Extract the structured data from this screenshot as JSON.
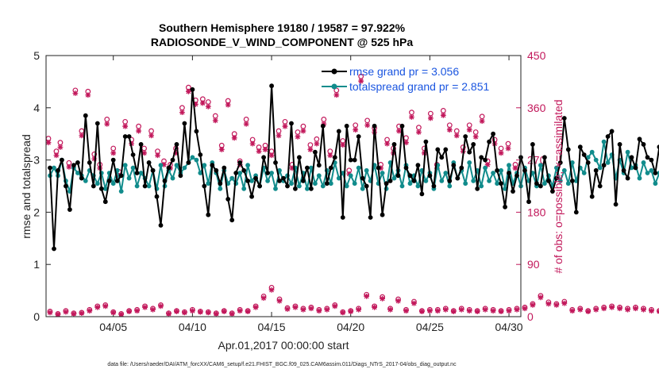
{
  "chart_data": {
    "type": "line",
    "title": "Southern Hemisphere 19180 / 19587 = 97.922%",
    "subtitle": "RADIOSONDE_V_WIND_COMPONENT @ 525 hPa",
    "xlabel": "Apr.01,2017 00:00:00 start",
    "ylabel_left": "rmse and totalspread",
    "ylabel_right": "# of obs: o=possible; ×=assimilated",
    "footnote": "data file: /Users/raeder/DAI/ATM_forcXX/CAM6_setup/f.e21.FHIST_BGC.f09_025.CAM6assim.011/Diags_NTrS_2017-04/obs_diag_output.nc",
    "xlim": [
      0.75,
      30.75
    ],
    "ylim_left": [
      0,
      5
    ],
    "ylim_right": [
      0,
      450
    ],
    "x_ticks": [
      {
        "day": 5,
        "label": "04/05"
      },
      {
        "day": 10,
        "label": "04/10"
      },
      {
        "day": 15,
        "label": "04/15"
      },
      {
        "day": 20,
        "label": "04/20"
      },
      {
        "day": 25,
        "label": "04/25"
      },
      {
        "day": 30,
        "label": "04/30"
      }
    ],
    "y_ticks_left": [
      "0",
      "1",
      "2",
      "3",
      "4",
      "5"
    ],
    "y_ticks_right": [
      "0",
      "90",
      "180",
      "270",
      "360",
      "450"
    ],
    "step_days": 0.25,
    "colors": {
      "rmse": "#000000",
      "spread": "#118c8c",
      "obs": "#c2185b",
      "legend_text": "#1a55e0"
    },
    "series": [
      {
        "name": "rmse grand pr = 3.056",
        "key": "rmse",
        "values": [
          2.85,
          1.3,
          2.8,
          3.0,
          2.5,
          2.05,
          2.9,
          2.95,
          2.65,
          3.85,
          2.95,
          2.5,
          3.7,
          2.45,
          2.2,
          2.6,
          3.0,
          2.6,
          2.7,
          3.45,
          3.45,
          3.1,
          2.75,
          3.3,
          2.5,
          2.95,
          2.8,
          2.3,
          1.75,
          2.6,
          2.85,
          3.0,
          3.3,
          2.7,
          3.7,
          2.95,
          4.35,
          3.55,
          3.1,
          2.5,
          1.95,
          2.9,
          2.8,
          2.55,
          2.85,
          2.25,
          1.85,
          2.75,
          2.95,
          2.8,
          2.6,
          2.3,
          2.65,
          2.5,
          3.05,
          2.75,
          4.42,
          2.95,
          2.6,
          2.65,
          2.5,
          3.7,
          2.45,
          3.05,
          2.6,
          2.85,
          2.45,
          3.15,
          2.9,
          3.65,
          2.55,
          2.85,
          3.05,
          3.55,
          1.9,
          3.65,
          3.0,
          3.0,
          3.45,
          2.65,
          2.5,
          1.9,
          3.65,
          2.85,
          1.95,
          2.55,
          2.6,
          3.3,
          2.7,
          3.65,
          2.85,
          2.7,
          2.6,
          2.9,
          2.35,
          3.35,
          2.7,
          2.5,
          3.2,
          3.05,
          3.2,
          2.6,
          2.9,
          2.65,
          2.85,
          3.45,
          3.15,
          3.3,
          2.45,
          3.05,
          3.0,
          3.35,
          3.5,
          2.8,
          2.55,
          2.1,
          2.75,
          2.4,
          2.7,
          3.05,
          2.8,
          2.2,
          3.3,
          2.55,
          2.5,
          3.05,
          2.6,
          2.4,
          2.65,
          2.95,
          3.8,
          3.2,
          2.6,
          2.0,
          3.25,
          3.1,
          2.95,
          2.3,
          2.8,
          2.5,
          2.9,
          3.45,
          3.55,
          2.15,
          3.3,
          2.8,
          2.65,
          3.05,
          2.85,
          3.4,
          3.3,
          3.05,
          3.0,
          2.75,
          3.25,
          3.75,
          3.55,
          3.3,
          2.55,
          2.3,
          2.0,
          3.2,
          2.9,
          3.55,
          1.4,
          3.35,
          2.75
        ]
      },
      {
        "name": "totalspread grand pr = 2.851",
        "key": "spread",
        "values": [
          2.7,
          2.85,
          2.7,
          3.0,
          2.6,
          2.4,
          2.85,
          2.75,
          2.7,
          2.6,
          2.8,
          2.7,
          2.55,
          2.75,
          2.45,
          2.75,
          2.55,
          2.8,
          2.4,
          2.9,
          2.65,
          2.85,
          2.5,
          2.75,
          2.65,
          2.5,
          2.8,
          2.45,
          2.9,
          2.5,
          2.8,
          2.65,
          2.9,
          2.75,
          2.85,
          2.95,
          3.05,
          3.0,
          2.75,
          2.9,
          2.55,
          2.95,
          2.75,
          2.45,
          2.8,
          2.55,
          2.65,
          2.55,
          2.75,
          2.45,
          2.9,
          2.6,
          2.7,
          2.5,
          2.85,
          2.6,
          2.75,
          2.45,
          2.8,
          2.6,
          2.7,
          2.55,
          2.85,
          2.5,
          2.75,
          2.45,
          2.85,
          2.55,
          2.7,
          2.5,
          2.8,
          2.55,
          2.95,
          2.65,
          2.75,
          2.5,
          2.7,
          2.55,
          2.85,
          2.45,
          2.8,
          2.6,
          2.9,
          2.55,
          2.75,
          2.45,
          2.95,
          2.65,
          2.8,
          2.5,
          2.9,
          2.55,
          2.7,
          2.5,
          2.8,
          2.6,
          2.75,
          2.45,
          2.9,
          2.6,
          2.75,
          2.5,
          2.95,
          2.65,
          2.8,
          2.55,
          2.95,
          2.6,
          2.8,
          2.5,
          2.85,
          2.6,
          2.75,
          2.55,
          2.8,
          2.45,
          2.9,
          2.55,
          2.75,
          2.5,
          2.85,
          2.6,
          2.75,
          2.5,
          2.9,
          2.55,
          2.7,
          2.5,
          2.85,
          2.6,
          2.8,
          2.55,
          2.95,
          2.6,
          2.85,
          2.75,
          3.05,
          3.15,
          3.0,
          2.85,
          3.35,
          2.95,
          3.1,
          2.65,
          3.0,
          2.75,
          3.15,
          2.85,
          2.9,
          2.65,
          2.95,
          2.75,
          2.8,
          2.55,
          2.75,
          2.5,
          2.9,
          2.6,
          2.8,
          2.55,
          2.45,
          2.85,
          2.35,
          2.9,
          2.5
        ]
      },
      {
        "name": "obs possible",
        "key": "obs_possible",
        "values": [
          9,
          12,
          5,
          22,
          10,
          18,
          6,
          15,
          7,
          20,
          12,
          8,
          18,
          6,
          20,
          12,
          8,
          15,
          5,
          22,
          10,
          8,
          12,
          6,
          18,
          10,
          14,
          8,
          20,
          12,
          6,
          14,
          10,
          18,
          8,
          22,
          12,
          16,
          9,
          14,
          8,
          12,
          6,
          18,
          10,
          14,
          6,
          20,
          12,
          16,
          10,
          20,
          18,
          28,
          35,
          45,
          50,
          42,
          30,
          20,
          15,
          12,
          18,
          10,
          14,
          8,
          16,
          10,
          12,
          8,
          14,
          10,
          20,
          12,
          8,
          15,
          10,
          22,
          14,
          30,
          38,
          25,
          18,
          28,
          34,
          20,
          14,
          24,
          30,
          18,
          12,
          20,
          26,
          14,
          10,
          16,
          12,
          18,
          12,
          22,
          14,
          18,
          10,
          16,
          14,
          20,
          12,
          16,
          10,
          18,
          14,
          22,
          12,
          16,
          10,
          20,
          12,
          18,
          14,
          24,
          16,
          30,
          22,
          28,
          36,
          30,
          25,
          18,
          22,
          14,
          26,
          20,
          12,
          18,
          14,
          22,
          10,
          18,
          14,
          20,
          16,
          12,
          18,
          10,
          16,
          8,
          14,
          12,
          16,
          10,
          14,
          8,
          12,
          6,
          10,
          4,
          8,
          2,
          6,
          1
        ]
      },
      {
        "name": "obs assimilated",
        "key": "obs_assim",
        "values": [
          7,
          10,
          4,
          20,
          8,
          16,
          5,
          13,
          6,
          18,
          10,
          7,
          16,
          5,
          18,
          10,
          7,
          13,
          4,
          20,
          9,
          7,
          10,
          5,
          16,
          9,
          12,
          7,
          18,
          10,
          5,
          12,
          9,
          16,
          7,
          20,
          10,
          14,
          8,
          12,
          7,
          10,
          5,
          16,
          9,
          12,
          5,
          18,
          10,
          14,
          9,
          18,
          16,
          25,
          32,
          42,
          46,
          38,
          27,
          18,
          13,
          10,
          16,
          9,
          12,
          7,
          14,
          9,
          10,
          7,
          12,
          9,
          18,
          10,
          7,
          13,
          9,
          20,
          12,
          27,
          35,
          22,
          16,
          25,
          31,
          18,
          12,
          22,
          27,
          16,
          10,
          18,
          23,
          12,
          9,
          14,
          10,
          16,
          10,
          20,
          12,
          16,
          9,
          14,
          12,
          18,
          10,
          14,
          9,
          16,
          12,
          20,
          10,
          14,
          9,
          18,
          10,
          16,
          12,
          22,
          14,
          27,
          20,
          25,
          33,
          27,
          22,
          16,
          20,
          12,
          23,
          18,
          10,
          16,
          12,
          20,
          9,
          16,
          12,
          18,
          14,
          10,
          16,
          9,
          14,
          7,
          12,
          10,
          14,
          9,
          12,
          7,
          10,
          5,
          9,
          3,
          7,
          1,
          5,
          1
        ]
      }
    ],
    "upper_obs": {
      "days": [
        0.9,
        1.4,
        1.65,
        2.2,
        2.6,
        3.0,
        3.4,
        3.8,
        4.15,
        4.6,
        5.0,
        5.35,
        5.75,
        6.15,
        6.6,
        6.95,
        7.4,
        7.8,
        8.2,
        8.6,
        8.95,
        9.35,
        9.75,
        10.2,
        10.65,
        11.0,
        11.45,
        11.85,
        12.25,
        12.65,
        13.0,
        13.4,
        13.8,
        14.2,
        14.6,
        15.0,
        15.45,
        15.85,
        16.3,
        16.65,
        17.0,
        17.45,
        17.85,
        18.3,
        18.7,
        19.1,
        19.5,
        19.9,
        20.3,
        20.65,
        21.05,
        21.5,
        21.9,
        22.3,
        22.7,
        23.05,
        23.5,
        23.85,
        24.3,
        24.65,
        25.05,
        25.45,
        25.85,
        26.25,
        26.7,
        27.1,
        27.5,
        27.9,
        28.3,
        28.65,
        29.1,
        29.5,
        29.95,
        30.4
      ],
      "possible": [
        307,
        285,
        300,
        265,
        390,
        320,
        388,
        280,
        262,
        340,
        290,
        250,
        336,
        305,
        328,
        290,
        320,
        285,
        268,
        262,
        290,
        360,
        395,
        373,
        375,
        370,
        346,
        295,
        372,
        315,
        268,
        340,
        305,
        292,
        295,
        285,
        320,
        336,
        262,
        318,
        328,
        296,
        306,
        340,
        285,
        390,
        303,
        252,
        330,
        414,
        338,
        325,
        262,
        305,
        290,
        328,
        308,
        352,
        326,
        290,
        350,
        262,
        355,
        330,
        320,
        292,
        330,
        318,
        345,
        268,
        305,
        290,
        298,
        262
      ],
      "assim": [
        300,
        278,
        292,
        258,
        385,
        312,
        382,
        272,
        256,
        332,
        282,
        243,
        328,
        298,
        320,
        282,
        312,
        278,
        262,
        256,
        282,
        352,
        388,
        366,
        368,
        362,
        338,
        288,
        365,
        308,
        262,
        332,
        298,
        285,
        288,
        278,
        312,
        328,
        256,
        310,
        320,
        288,
        298,
        332,
        278,
        382,
        296,
        246,
        322,
        406,
        330,
        318,
        256,
        298,
        282,
        320,
        300,
        344,
        318,
        282,
        342,
        256,
        347,
        322,
        312,
        285,
        322,
        310,
        337,
        262,
        298,
        282,
        290,
        256
      ]
    }
  }
}
